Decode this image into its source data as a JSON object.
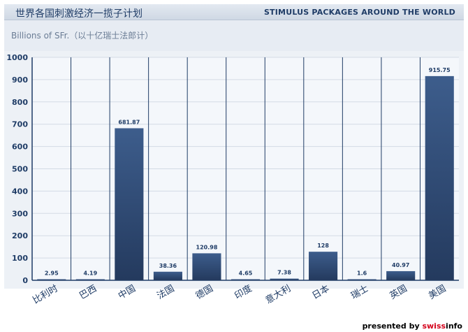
{
  "header": {
    "title_cn": "世界各国刺激经济一揽子计划",
    "title_en": "STIMULUS PACKAGES AROUND THE WORLD"
  },
  "unit_label": "Billions of SFr.（以十亿瑞士法郎计）",
  "credit": {
    "prefix": "presented by ",
    "brand_a": "swiss",
    "brand_b": "info"
  },
  "colors": {
    "bar_top": "#3d5d8c",
    "bar_bottom": "#243a5e",
    "separator": "#1f3c66",
    "grid": "#d3dbe5"
  },
  "chart_data": {
    "type": "bar",
    "title": "STIMULUS PACKAGES AROUND THE WORLD",
    "ylabel": "Billions of SFr.（以十亿瑞士法郎计）",
    "xlabel": "",
    "ylim": [
      0,
      1000
    ],
    "yticks": [
      0,
      100,
      200,
      300,
      400,
      500,
      600,
      700,
      800,
      900,
      1000
    ],
    "grid": true,
    "categories": [
      "比利时",
      "巴西",
      "中国",
      "法国",
      "德国",
      "印度",
      "意大利",
      "日本",
      "瑞士",
      "英国",
      "美国"
    ],
    "values": [
      2.95,
      4.19,
      681.87,
      38.36,
      120.98,
      4.65,
      7.38,
      128,
      1.6,
      40.97,
      915.75
    ],
    "value_labels": [
      "2.95",
      "4.19",
      "681.87",
      "38.36",
      "120.98",
      "4.65",
      "7.38",
      "128",
      "1.6",
      "40.97",
      "915.75"
    ]
  }
}
